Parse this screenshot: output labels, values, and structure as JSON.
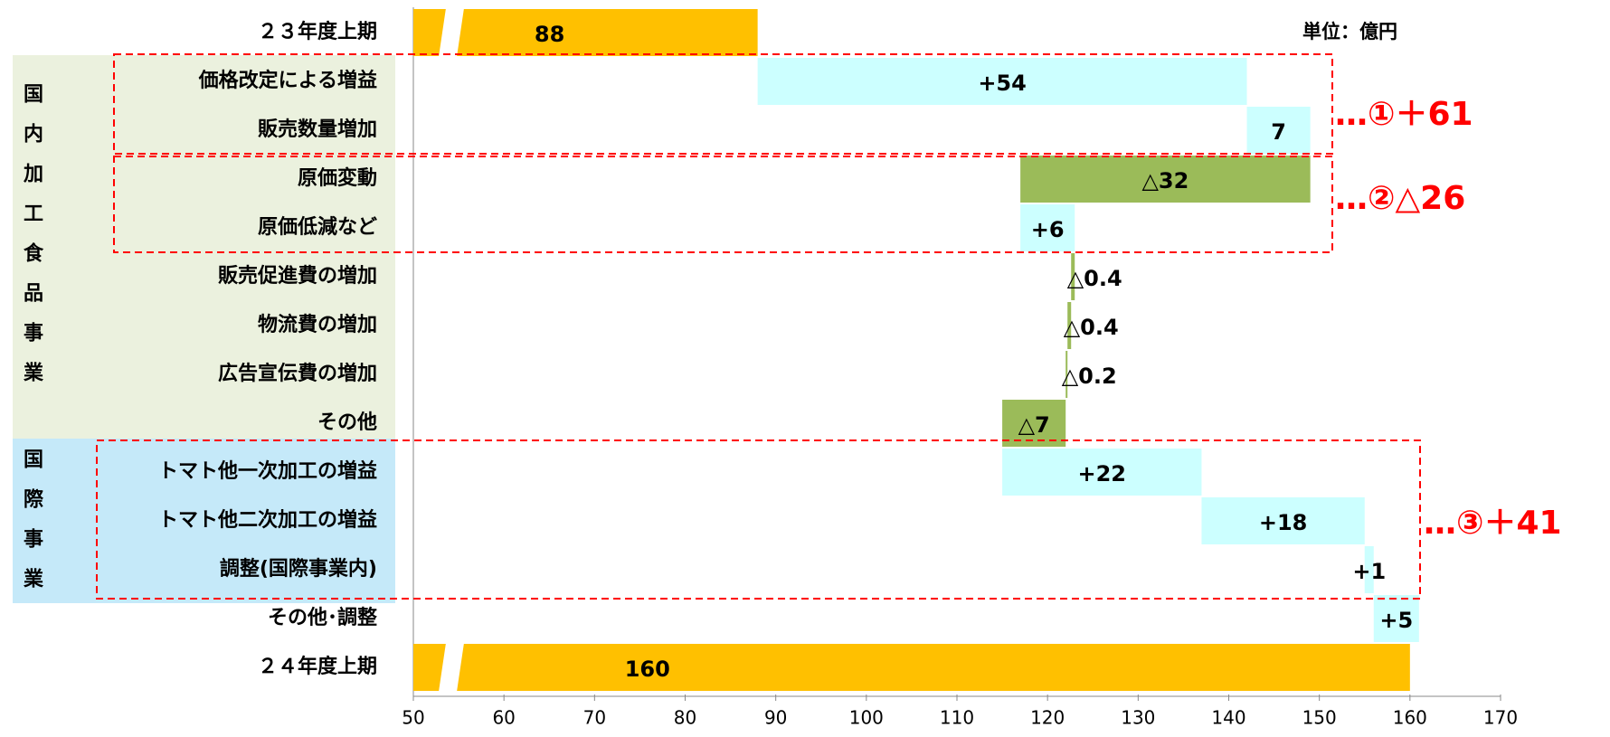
{
  "chart_data": {
    "type": "waterfall",
    "unit_note": "単位：億円",
    "groups": [
      {
        "name": "国内加工食品事業",
        "color": "#ebf1de"
      },
      {
        "name": "国際事業",
        "color": "#c5e9f9"
      }
    ],
    "categories": [
      "２３年度上期",
      "価格改定による増益",
      "販売数量増加",
      "原価変動",
      "原価低減など",
      "販売促進費の増加",
      "物流費の増加",
      "広告宣伝費の増加",
      "その他",
      "トマト他一次加工の増益",
      "トマト他二次加工の増益",
      "調整(国際事業内)",
      "その他･調整",
      "２４年度上期"
    ],
    "measures": [
      "total",
      "relative",
      "relative",
      "relative",
      "relative",
      "relative",
      "relative",
      "relative",
      "relative",
      "relative",
      "relative",
      "relative",
      "relative",
      "total"
    ],
    "values": [
      88,
      54,
      7,
      -32,
      6,
      -0.4,
      -0.4,
      -0.2,
      -7,
      22,
      18,
      1,
      5,
      160
    ],
    "value_labels": [
      "88",
      "+54",
      "7",
      "△32",
      "+6",
      "△0.4",
      "△0.4",
      "△0.2",
      "△7",
      "+22",
      "+18",
      "+1",
      "+5",
      "160"
    ],
    "colors": {
      "total": "#ffc000",
      "increase": "#ccffff",
      "decrease": "#9bbb59"
    },
    "annotations": [
      "…①＋61",
      "…②△26",
      "…③＋41"
    ],
    "xlim": [
      50,
      170
    ],
    "xticks": [
      50,
      60,
      70,
      80,
      90,
      100,
      110,
      120,
      130,
      140,
      150,
      160,
      170
    ]
  }
}
